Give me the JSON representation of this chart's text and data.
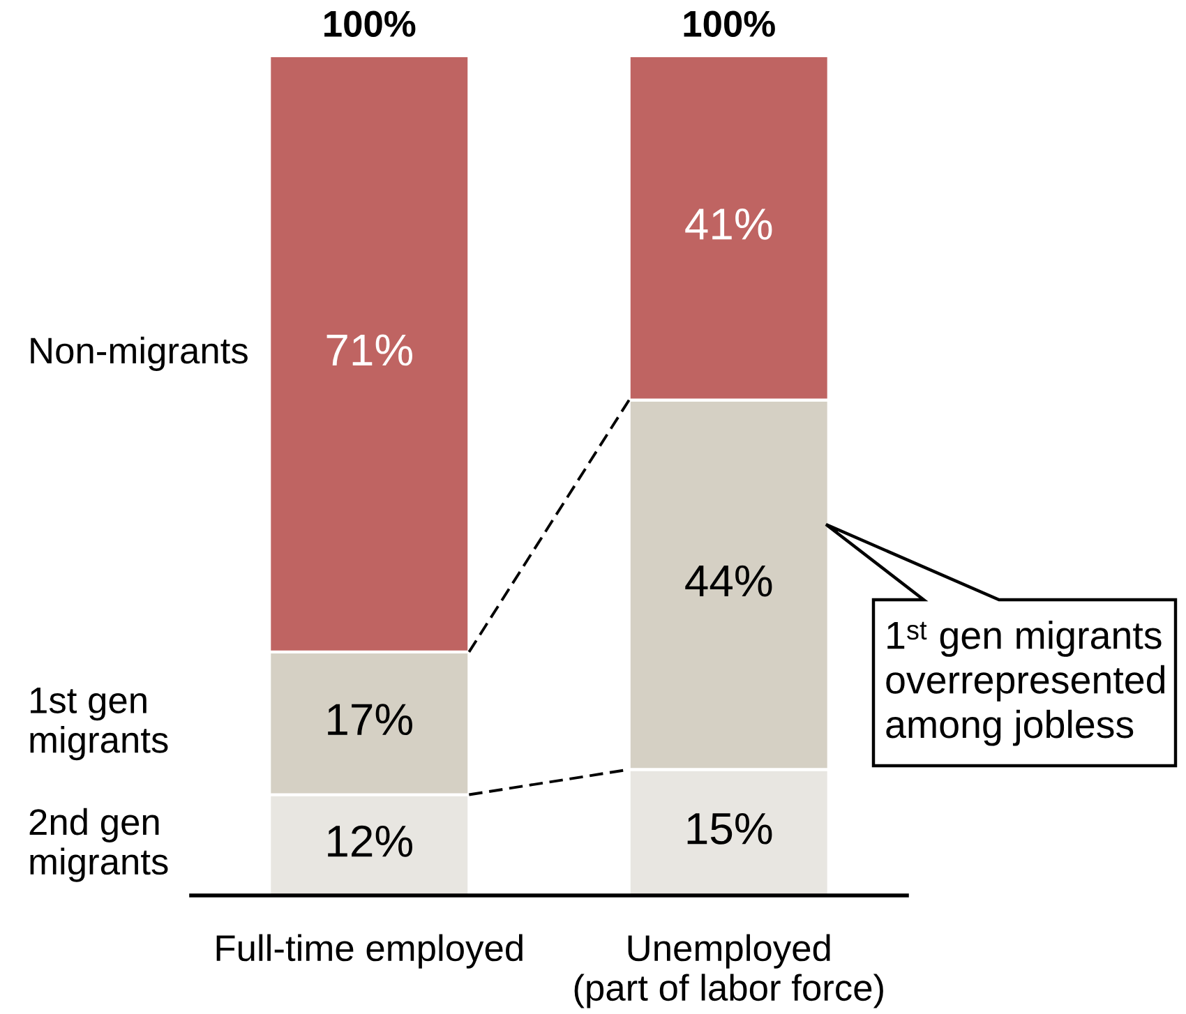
{
  "chart_data": {
    "type": "bar",
    "stacked": true,
    "categories": [
      "Full-time employed",
      "Unemployed\n(part of labor force)"
    ],
    "series": [
      {
        "name": "2nd gen\nmigrants",
        "color": "#e8e6e1",
        "values": [
          12,
          15
        ],
        "value_labels": [
          "12%",
          "15%"
        ]
      },
      {
        "name": "1st gen\nmigrants",
        "color": "#d5d0c4",
        "values": [
          17,
          44
        ],
        "value_labels": [
          "17%",
          "44%"
        ]
      },
      {
        "name": "Non-migrants",
        "color": "#bf6462",
        "values": [
          71,
          41
        ],
        "value_labels": [
          "71%",
          "41%"
        ]
      }
    ],
    "totals": [
      "100%",
      "100%"
    ],
    "line_style": "dashed",
    "tick_labels": "x",
    "annotations": [
      "1ˢᵗ gen migrants\noverrepresented\namong jobless"
    ]
  }
}
